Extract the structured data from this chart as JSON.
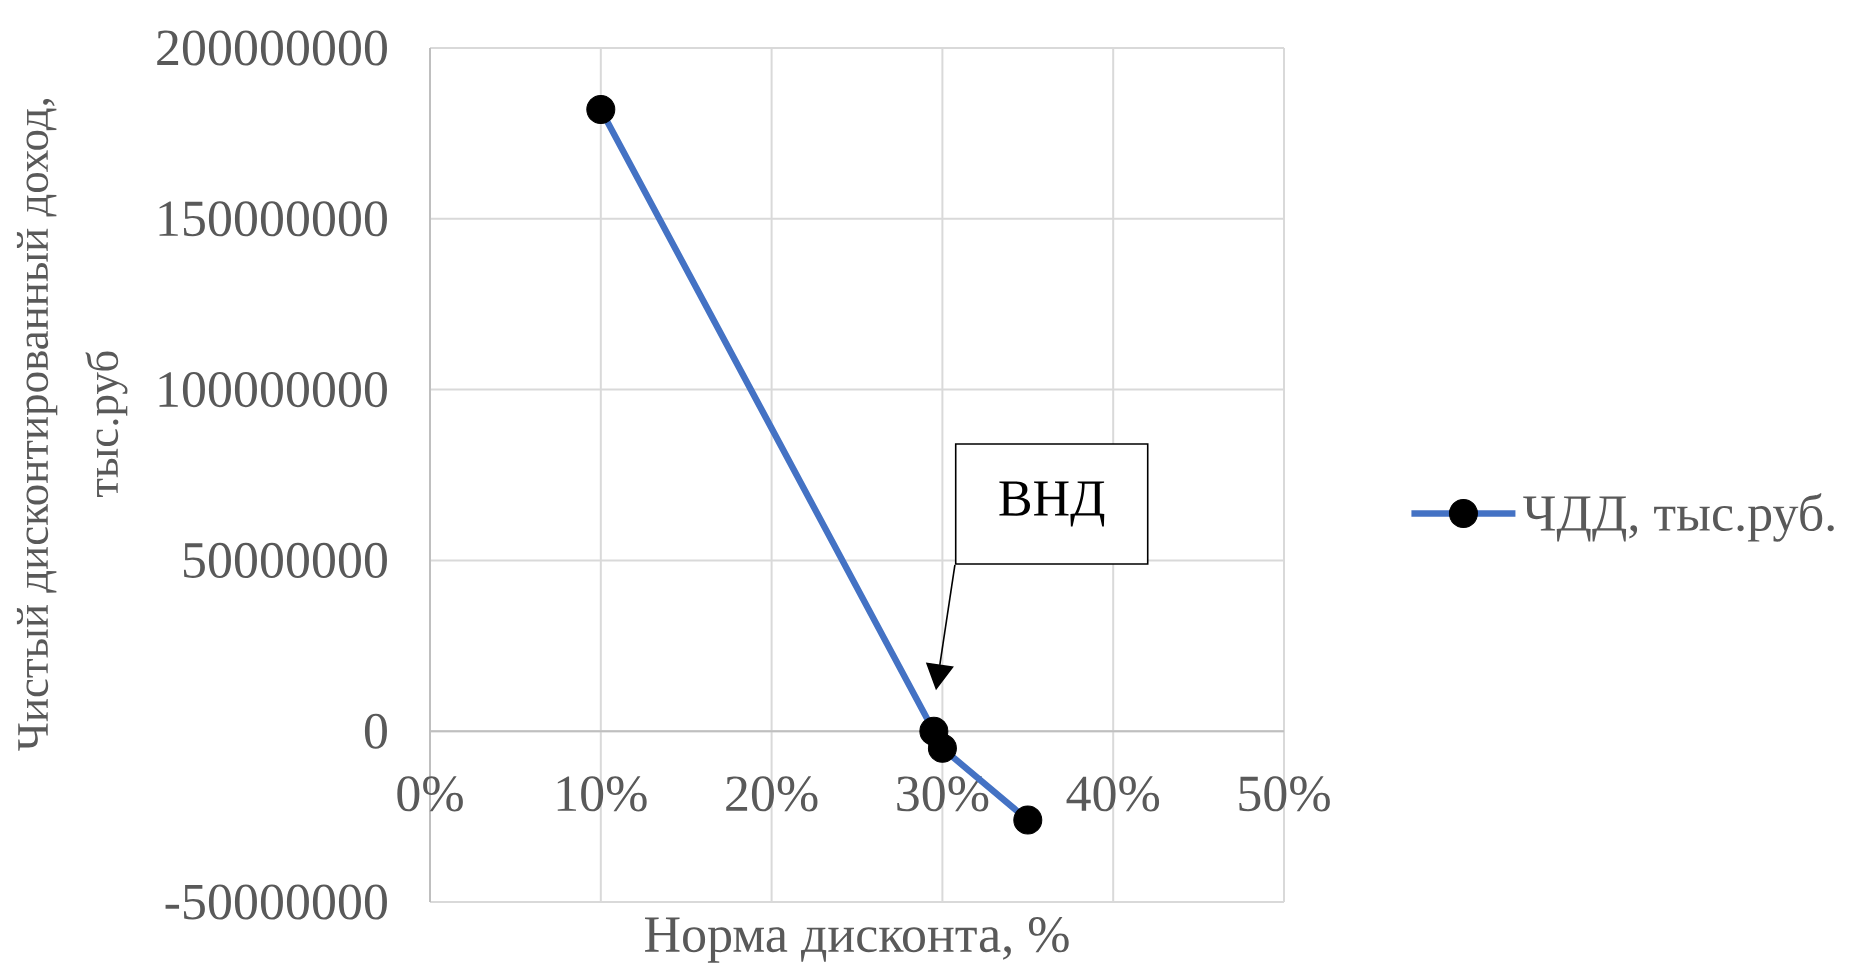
{
  "chart_data": {
    "type": "line",
    "xlabel": "Норма дисконта, %",
    "ylabel": "Чистый дисконтированный доход, тыс.руб",
    "x": [
      10,
      29.5,
      30,
      35
    ],
    "series": [
      {
        "name": "ЧДД, тыс.руб.",
        "color": "#4472c4",
        "values": [
          182000000,
          0,
          -5000000,
          -26000000
        ]
      }
    ],
    "xlim": [
      0,
      50
    ],
    "ylim": [
      -50000000,
      200000000
    ],
    "xticks": [
      {
        "value": 0,
        "label": "0%"
      },
      {
        "value": 10,
        "label": "10%"
      },
      {
        "value": 20,
        "label": "20%"
      },
      {
        "value": 30,
        "label": "30%"
      },
      {
        "value": 40,
        "label": "40%"
      },
      {
        "value": 50,
        "label": "50%"
      }
    ],
    "yticks": [
      -50000000,
      0,
      50000000,
      100000000,
      150000000,
      200000000
    ],
    "grid": true,
    "legend": "right",
    "marker": "circle",
    "line_style": "solid",
    "annotations": [
      "ВНД"
    ]
  }
}
